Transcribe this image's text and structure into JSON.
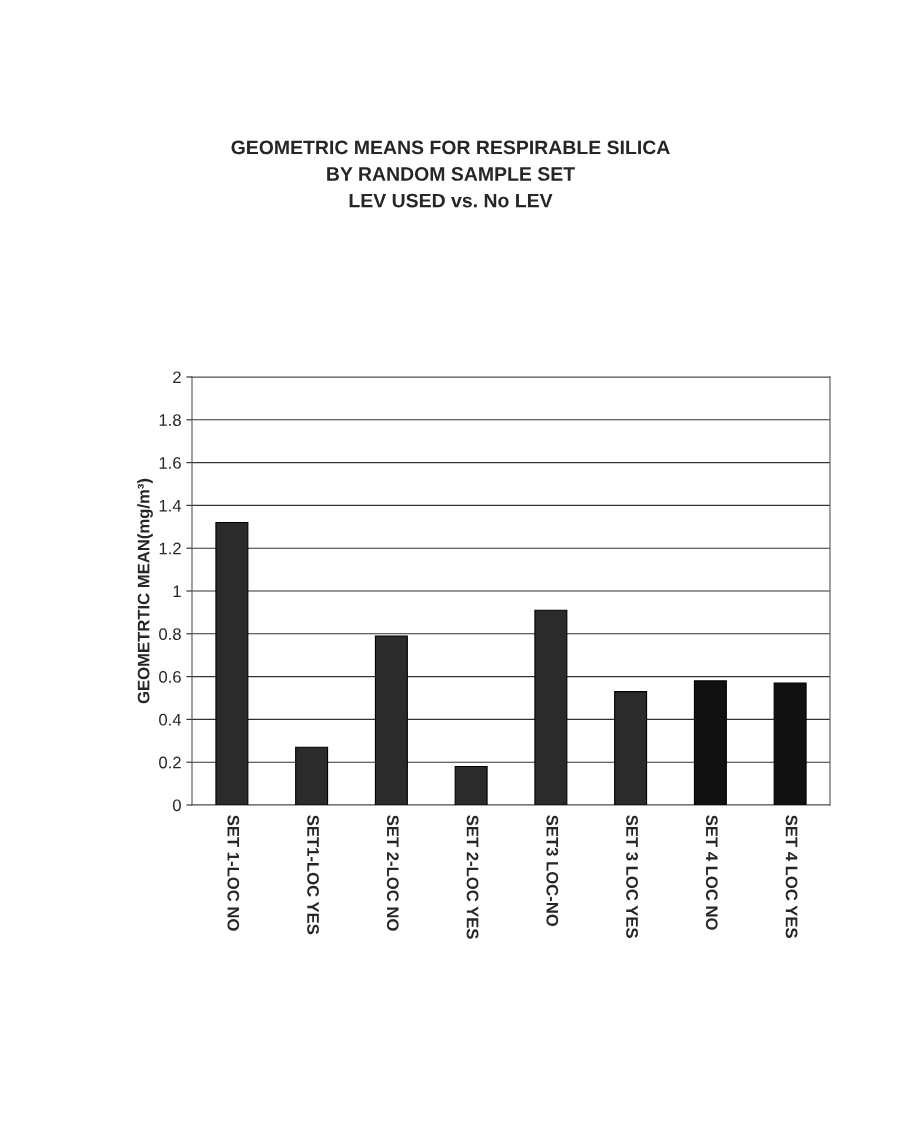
{
  "chart_data": {
    "type": "bar",
    "title": "GEOMETRIC MEANS FOR RESPIRABLE SILICA\nBY RANDOM SAMPLE SET\nLEV USED vs. No LEV",
    "ylabel": "GEOMETRTIC MEAN(mg/m³)",
    "categories": [
      "SET 1-LOC NO",
      "SET1-LOC YES",
      "SET 2-LOC NO",
      "SET 2-LOC YES",
      "SET3 LOC-NO",
      "SET 3 LOC YES",
      "SET 4 LOC NO",
      "SET 4 LOC YES"
    ],
    "values": [
      1.32,
      0.27,
      0.79,
      0.18,
      0.91,
      0.53,
      0.58,
      0.57
    ],
    "colors": [
      "#2b2b2b",
      "#2b2b2b",
      "#2b2b2b",
      "#2b2b2b",
      "#2b2b2b",
      "#2b2b2b",
      "#111111",
      "#111111"
    ],
    "ylim": [
      0,
      2
    ],
    "yticks": [
      0,
      {
        "value": 0.2,
        "label": "0.2"
      },
      {
        "value": 0.4,
        "label": "0.4"
      },
      {
        "value": 0.6,
        "label": "0.6"
      },
      {
        "value": 0.8,
        "label": "0.8"
      },
      1,
      {
        "value": 1.2,
        "label": "1.2"
      },
      {
        "value": 1.4,
        "label": "1.4"
      },
      {
        "value": 1.6,
        "label": "1.6"
      },
      {
        "value": 1.8,
        "label": "1.8"
      },
      2
    ],
    "grid": "y",
    "legend": false
  }
}
